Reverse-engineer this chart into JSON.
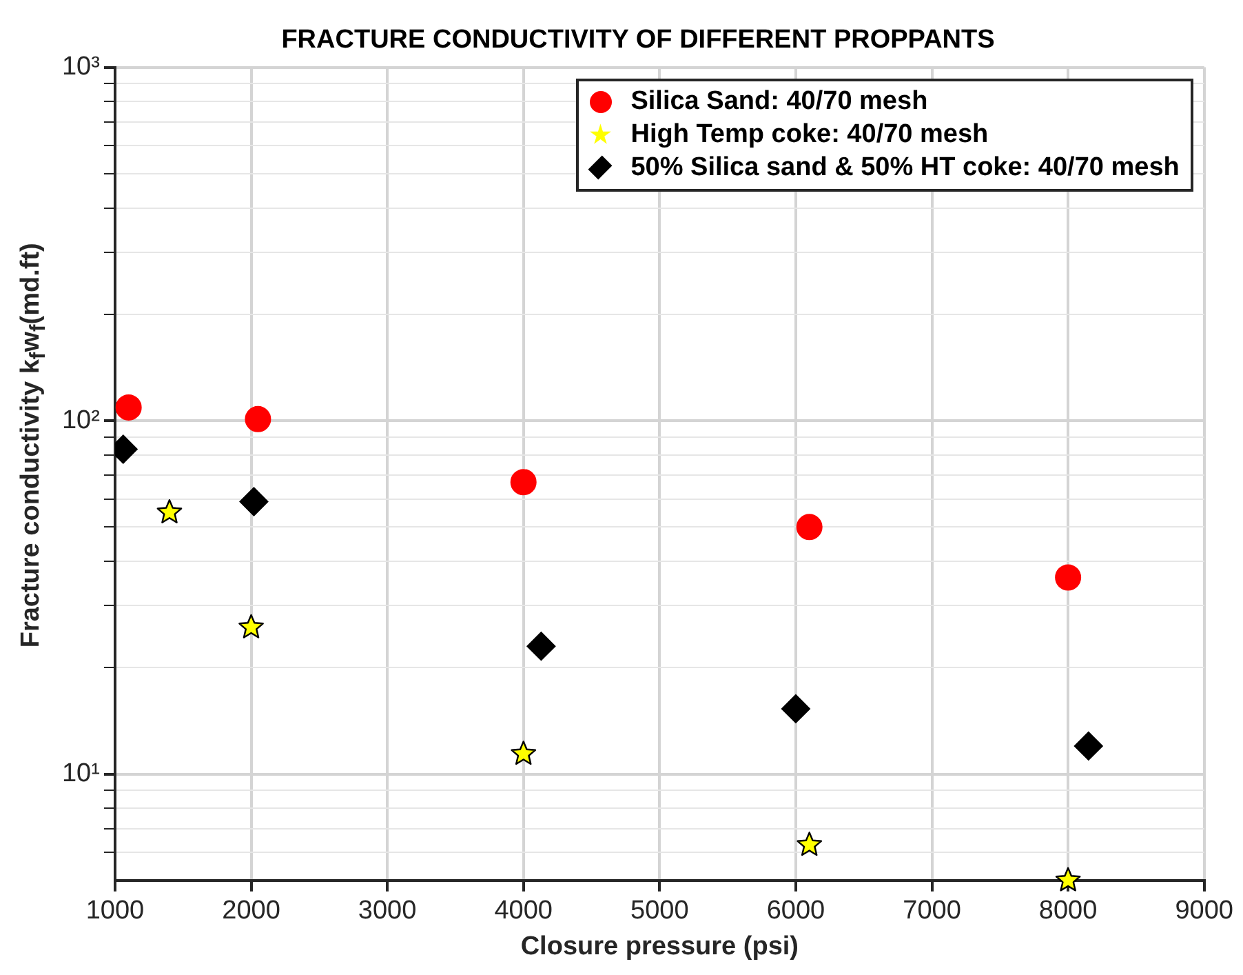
{
  "chart_data": {
    "type": "scatter",
    "title": "FRACTURE CONDUCTIVITY OF DIFFERENT PROPPANTS",
    "xlabel": "Closure pressure (psi)",
    "ylabel": "Fracture conductivity k$_{f}$w$_{f}$(md.ft)",
    "series": [
      {
        "name": "Silica Sand: 40/70 mesh",
        "color": "#ff0000",
        "marker": "circle",
        "x": [
          1100,
          2050,
          4000,
          6100,
          8000
        ],
        "values": [
          109,
          101,
          67,
          50,
          36
        ]
      },
      {
        "name": "High Temp coke: 40/70 mesh",
        "color": "#ffff00",
        "marker": "star",
        "x": [
          1400,
          2000,
          4000,
          6100,
          8000
        ],
        "values": [
          55,
          26,
          11.4,
          6.3,
          5
        ]
      },
      {
        "name": "50% Silica sand & 50% HT coke: 40/70 mesh",
        "color": "#000000",
        "marker": "diamond",
        "x": [
          1060,
          2020,
          4130,
          6000,
          8150
        ],
        "values": [
          83,
          59,
          23,
          15.3,
          12
        ]
      }
    ],
    "log": "y",
    "xlim": [
      1000,
      9000
    ],
    "xticks": [
      1000,
      2000,
      3000,
      4000,
      5000,
      6000,
      7000,
      8000,
      9000
    ],
    "ylim": [
      5,
      1000
    ],
    "yticks": [
      {
        "value": 6,
        "label": null
      },
      {
        "value": 7,
        "label": null
      },
      {
        "value": 8,
        "label": null
      },
      {
        "value": 9,
        "label": null
      },
      {
        "value": 10,
        "label": "10¹"
      },
      {
        "value": 20,
        "label": null
      },
      {
        "value": 30,
        "label": null
      },
      {
        "value": 40,
        "label": null
      },
      {
        "value": 50,
        "label": null
      },
      {
        "value": 60,
        "label": null
      },
      {
        "value": 70,
        "label": null
      },
      {
        "value": 80,
        "label": null
      },
      {
        "value": 90,
        "label": null
      },
      {
        "value": 100,
        "label": "10²"
      },
      {
        "value": 200,
        "label": null
      },
      {
        "value": 300,
        "label": null
      },
      {
        "value": 400,
        "label": null
      },
      {
        "value": 500,
        "label": null
      },
      {
        "value": 600,
        "label": null
      },
      {
        "value": 700,
        "label": null
      },
      {
        "value": 800,
        "label": null
      },
      {
        "value": 900,
        "label": null
      },
      {
        "value": 1000,
        "label": "10³"
      }
    ],
    "grid": true,
    "legend": "top right"
  }
}
